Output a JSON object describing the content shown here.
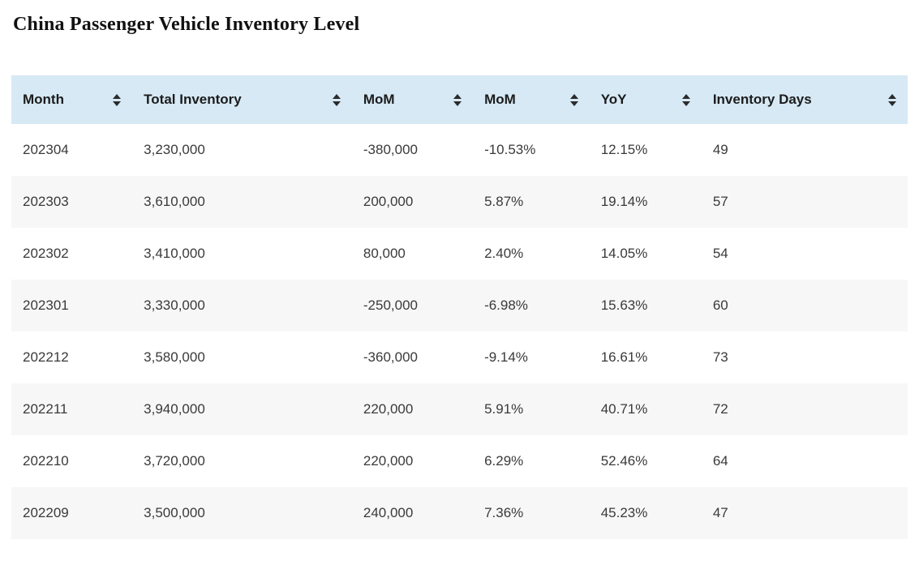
{
  "page": {
    "title": "China Passenger Vehicle Inventory Level"
  },
  "chart_data": {
    "type": "table",
    "title": "China Passenger Vehicle Inventory Level",
    "columns": [
      "Month",
      "Total Inventory",
      "MoM",
      "MoM",
      "YoY",
      "Inventory Days"
    ],
    "rows": [
      [
        "202304",
        "3,230,000",
        "-380,000",
        "-10.53%",
        "12.15%",
        "49"
      ],
      [
        "202303",
        "3,610,000",
        "200,000",
        "5.87%",
        "19.14%",
        "57"
      ],
      [
        "202302",
        "3,410,000",
        "80,000",
        "2.40%",
        "14.05%",
        "54"
      ],
      [
        "202301",
        "3,330,000",
        "-250,000",
        "-6.98%",
        "15.63%",
        "60"
      ],
      [
        "202212",
        "3,580,000",
        "-360,000",
        "-9.14%",
        "16.61%",
        "73"
      ],
      [
        "202211",
        "3,940,000",
        "220,000",
        "5.91%",
        "40.71%",
        "72"
      ],
      [
        "202210",
        "3,720,000",
        "220,000",
        "6.29%",
        "52.46%",
        "64"
      ],
      [
        "202209",
        "3,500,000",
        "240,000",
        "7.36%",
        "45.23%",
        "47"
      ]
    ],
    "layout": {
      "header_bg": "#d6e9f5",
      "stripe_bg": "#f7f7f7",
      "sortable_columns": true
    }
  }
}
